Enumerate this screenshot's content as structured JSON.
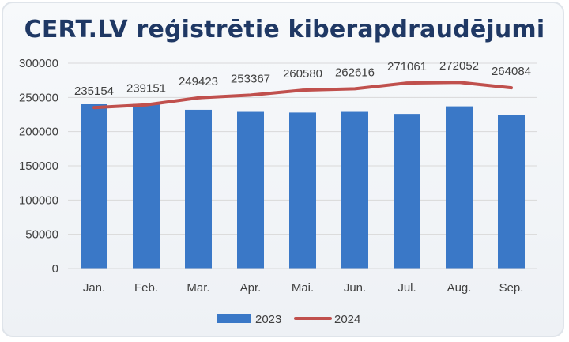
{
  "chart_data": {
    "type": "bar+line",
    "title": "CERT.LV reģistrētie kiberapdraudējumi",
    "categories": [
      "Jan.",
      "Feb.",
      "Mar.",
      "Apr.",
      "Mai.",
      "Jun.",
      "Jūl.",
      "Aug.",
      "Sep."
    ],
    "series": [
      {
        "name": "2023",
        "type": "bar",
        "color": "#3a78c7",
        "values": [
          240000,
          240500,
          232000,
          229000,
          228000,
          229000,
          226000,
          237000,
          224000
        ]
      },
      {
        "name": "2024",
        "type": "line",
        "color": "#c0504d",
        "values": [
          235154,
          239151,
          249423,
          253367,
          260580,
          262616,
          271061,
          272052,
          264084
        ],
        "labels": [
          "235154",
          "239151",
          "249423",
          "253367",
          "260580",
          "262616",
          "271061",
          "272052",
          "264084"
        ]
      }
    ],
    "ylim": [
      0,
      300000
    ],
    "yticks": [
      "0",
      "50000",
      "100000",
      "150000",
      "200000",
      "250000",
      "300000"
    ],
    "grid": true,
    "legend": "bottom"
  }
}
